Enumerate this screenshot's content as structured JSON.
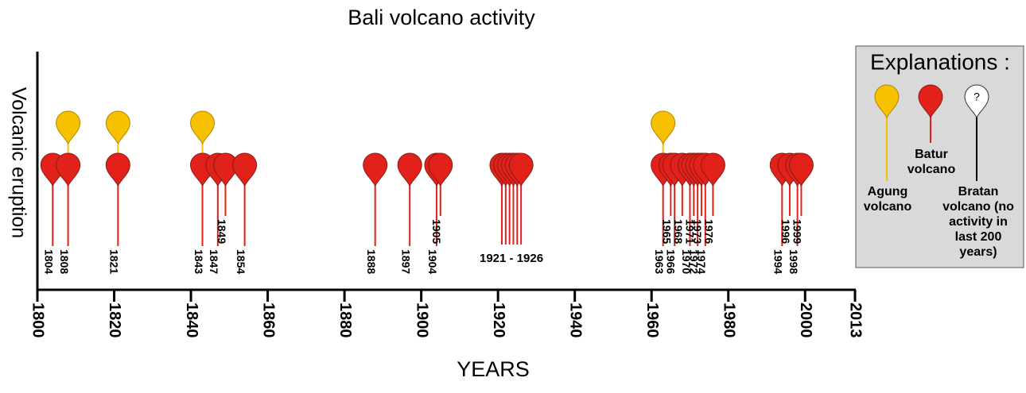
{
  "chart_data": {
    "type": "timeline",
    "title": "Bali volcano activity",
    "y_label": "Volcanic eruption",
    "x_label": "YEARS",
    "xlim": [
      1800,
      2013
    ],
    "xticks": [
      1800,
      1820,
      1840,
      1860,
      1880,
      1900,
      1920,
      1940,
      1960,
      1980,
      2000,
      2013
    ],
    "legend_title": "Explanations :",
    "series": [
      {
        "name": "Agung volcano",
        "color": "#f7c100",
        "events": [
          1808,
          1821,
          1843,
          1963
        ]
      },
      {
        "name": "Batur volcano",
        "color": "#e3211b",
        "events": [
          1804,
          1808,
          1821,
          1843,
          1847,
          1849,
          1854,
          1888,
          1897,
          1904,
          1905,
          {
            "years": [
              1921,
              1922,
              1923,
              1924,
              1925,
              1926
            ],
            "label": "1921 - 1926"
          },
          1963,
          1965,
          1966,
          1968,
          1970,
          1971,
          1972,
          1973,
          1974,
          1976,
          1994,
          1996,
          1998,
          1999
        ]
      },
      {
        "name": "Bratan volcano (no activity in last 200 years)",
        "color": "#ffffff",
        "symbol": "?",
        "events": []
      }
    ]
  }
}
